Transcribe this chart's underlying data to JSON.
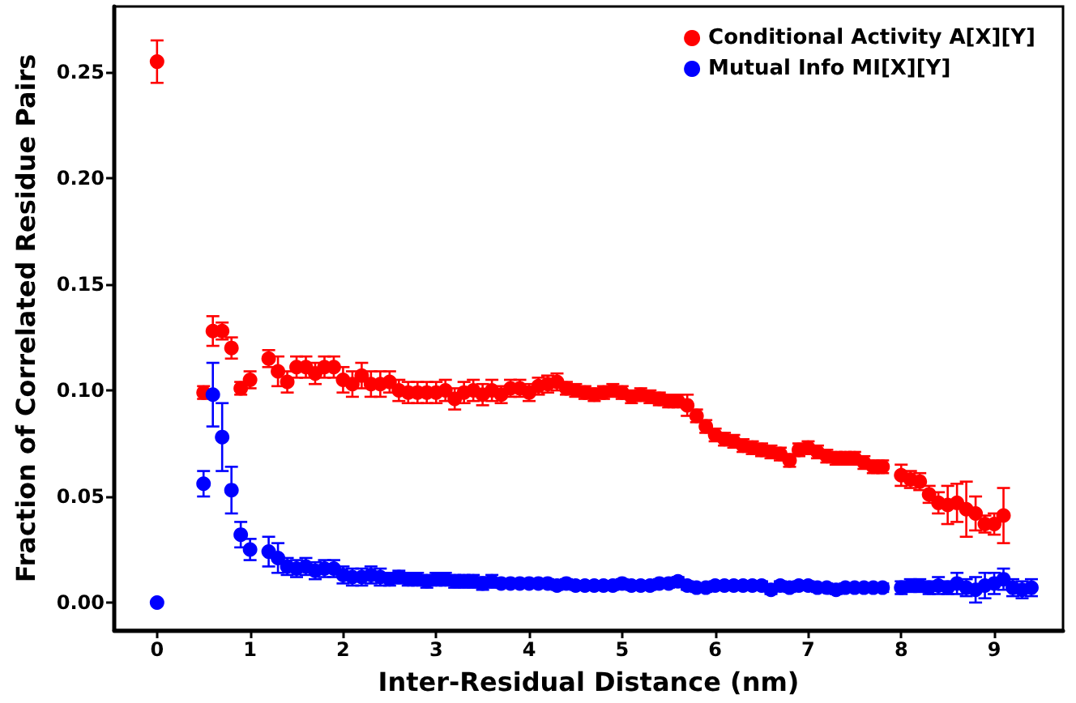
{
  "chart_data": {
    "type": "scatter",
    "xlabel": "Inter-Residual Distance (nm)",
    "ylabel": "Fraction of Correlated Residue Pairs",
    "xlim": [
      -0.46,
      9.74
    ],
    "xticks": [
      0,
      1,
      2,
      3,
      4,
      5,
      6,
      7,
      8,
      9
    ],
    "ylim": [
      -0.013,
      0.281
    ],
    "yticks": [
      {
        "value": 0,
        "label": "0.00"
      },
      0.05,
      {
        "value": 0.1,
        "label": "0.10"
      },
      0.15,
      {
        "value": 0.2,
        "label": "0.20"
      },
      0.25
    ],
    "legend": "top right",
    "marker": "circle",
    "grid": false,
    "series": [
      {
        "name": "Conditional Activity A[X][Y]",
        "color": "#ff0000",
        "x": [
          0,
          0.5,
          0.6,
          0.7,
          0.8,
          0.9,
          1.0,
          1.2,
          1.3,
          1.4,
          1.5,
          1.6,
          1.7,
          1.8,
          1.9,
          2.0,
          2.1,
          2.2,
          2.3,
          2.4,
          2.5,
          2.6,
          2.7,
          2.8,
          2.9,
          3.0,
          3.1,
          3.2,
          3.3,
          3.4,
          3.5,
          3.6,
          3.7,
          3.8,
          3.9,
          4.0,
          4.1,
          4.2,
          4.3,
          4.4,
          4.5,
          4.6,
          4.7,
          4.8,
          4.9,
          5.0,
          5.1,
          5.2,
          5.3,
          5.4,
          5.5,
          5.6,
          5.7,
          5.8,
          5.9,
          6.0,
          6.1,
          6.2,
          6.3,
          6.4,
          6.5,
          6.6,
          6.7,
          6.8,
          6.9,
          7.0,
          7.1,
          7.2,
          7.3,
          7.4,
          7.5,
          7.6,
          7.7,
          7.8,
          8.0,
          8.1,
          8.2,
          8.3,
          8.4,
          8.5,
          8.6,
          8.7,
          8.8,
          8.9,
          9.0,
          9.1
        ],
        "values": [
          0.255,
          0.099,
          0.128,
          0.128,
          0.12,
          0.101,
          0.105,
          0.115,
          0.109,
          0.104,
          0.111,
          0.111,
          0.108,
          0.111,
          0.111,
          0.105,
          0.103,
          0.107,
          0.103,
          0.103,
          0.104,
          0.1,
          0.099,
          0.099,
          0.099,
          0.099,
          0.1,
          0.096,
          0.099,
          0.1,
          0.098,
          0.1,
          0.098,
          0.101,
          0.101,
          0.099,
          0.102,
          0.103,
          0.104,
          0.101,
          0.1,
          0.099,
          0.098,
          0.099,
          0.1,
          0.099,
          0.097,
          0.098,
          0.097,
          0.096,
          0.095,
          0.095,
          0.093,
          0.088,
          0.083,
          0.079,
          0.077,
          0.076,
          0.074,
          0.073,
          0.072,
          0.071,
          0.07,
          0.067,
          0.072,
          0.073,
          0.071,
          0.069,
          0.068,
          0.068,
          0.068,
          0.066,
          0.064,
          0.064,
          0.06,
          0.058,
          0.057,
          0.051,
          0.047,
          0.046,
          0.047,
          0.044,
          0.042,
          0.037,
          0.037,
          0.041
        ],
        "errors": [
          0.01,
          0.003,
          0.007,
          0.004,
          0.005,
          0.003,
          0.004,
          0.004,
          0.007,
          0.005,
          0.005,
          0.005,
          0.005,
          0.005,
          0.005,
          0.006,
          0.006,
          0.006,
          0.006,
          0.006,
          0.005,
          0.005,
          0.005,
          0.005,
          0.005,
          0.005,
          0.005,
          0.005,
          0.005,
          0.005,
          0.005,
          0.005,
          0.004,
          0.004,
          0.004,
          0.004,
          0.004,
          0.004,
          0.004,
          0.003,
          0.003,
          0.003,
          0.003,
          0.003,
          0.003,
          0.003,
          0.003,
          0.003,
          0.003,
          0.003,
          0.003,
          0.003,
          0.005,
          0.003,
          0.003,
          0.003,
          0.003,
          0.003,
          0.003,
          0.003,
          0.003,
          0.003,
          0.003,
          0.003,
          0.003,
          0.003,
          0.003,
          0.003,
          0.003,
          0.003,
          0.003,
          0.003,
          0.003,
          0.003,
          0.005,
          0.004,
          0.004,
          0.004,
          0.005,
          0.009,
          0.009,
          0.013,
          0.008,
          0.004,
          0.005,
          0.013
        ]
      },
      {
        "name": "Mutual Info MI[X][Y]",
        "color": "#0000ff",
        "x": [
          0,
          0.5,
          0.6,
          0.7,
          0.8,
          0.9,
          1.0,
          1.2,
          1.3,
          1.4,
          1.5,
          1.6,
          1.7,
          1.8,
          1.9,
          2.0,
          2.1,
          2.2,
          2.3,
          2.4,
          2.5,
          2.6,
          2.7,
          2.8,
          2.9,
          3.0,
          3.1,
          3.2,
          3.3,
          3.4,
          3.5,
          3.6,
          3.7,
          3.8,
          3.9,
          4.0,
          4.1,
          4.2,
          4.3,
          4.4,
          4.5,
          4.6,
          4.7,
          4.8,
          4.9,
          5.0,
          5.1,
          5.2,
          5.3,
          5.4,
          5.5,
          5.6,
          5.7,
          5.8,
          5.9,
          6.0,
          6.1,
          6.2,
          6.3,
          6.4,
          6.5,
          6.6,
          6.7,
          6.8,
          6.9,
          7.0,
          7.1,
          7.2,
          7.3,
          7.4,
          7.5,
          7.6,
          7.7,
          7.8,
          8.0,
          8.1,
          8.2,
          8.3,
          8.4,
          8.5,
          8.6,
          8.7,
          8.8,
          8.9,
          9.0,
          9.1,
          9.2,
          9.3,
          9.4
        ],
        "values": [
          0,
          0.056,
          0.098,
          0.078,
          0.053,
          0.032,
          0.025,
          0.024,
          0.021,
          0.017,
          0.016,
          0.017,
          0.015,
          0.016,
          0.016,
          0.013,
          0.012,
          0.012,
          0.013,
          0.012,
          0.011,
          0.012,
          0.011,
          0.011,
          0.01,
          0.011,
          0.011,
          0.01,
          0.01,
          0.01,
          0.009,
          0.01,
          0.009,
          0.009,
          0.009,
          0.009,
          0.009,
          0.009,
          0.008,
          0.009,
          0.008,
          0.008,
          0.008,
          0.008,
          0.008,
          0.009,
          0.008,
          0.008,
          0.008,
          0.009,
          0.009,
          0.01,
          0.008,
          0.007,
          0.007,
          0.008,
          0.008,
          0.008,
          0.008,
          0.008,
          0.008,
          0.006,
          0.008,
          0.007,
          0.008,
          0.008,
          0.007,
          0.007,
          0.006,
          0.007,
          0.007,
          0.007,
          0.007,
          0.007,
          0.007,
          0.008,
          0.008,
          0.007,
          0.008,
          0.007,
          0.009,
          0.007,
          0.006,
          0.008,
          0.009,
          0.011,
          0.007,
          0.006,
          0.007
        ],
        "errors": [
          null,
          0.006,
          0.015,
          0.016,
          0.011,
          0.006,
          0.005,
          0.007,
          0.007,
          0.004,
          0.004,
          0.004,
          0.004,
          0.004,
          0.004,
          0.004,
          0.004,
          0.004,
          0.004,
          0.004,
          0.003,
          0.003,
          0.003,
          0.003,
          0.003,
          0.003,
          0.003,
          0.003,
          0.003,
          0.003,
          0.003,
          0.003,
          0.002,
          0.002,
          0.002,
          0.002,
          0.002,
          0.002,
          0.002,
          0.002,
          0.002,
          0.002,
          0.002,
          0.002,
          0.002,
          0.002,
          0.002,
          0.002,
          0.002,
          0.002,
          0.002,
          0.002,
          0.002,
          0.002,
          0.002,
          0.002,
          0.002,
          0.002,
          0.002,
          0.002,
          0.002,
          0.002,
          0.002,
          0.002,
          0.002,
          0.002,
          0.002,
          0.002,
          0.002,
          0.002,
          0.002,
          0.002,
          0.002,
          0.002,
          0.003,
          0.003,
          0.003,
          0.003,
          0.004,
          0.003,
          0.005,
          0.004,
          0.006,
          0.006,
          0.005,
          0.005,
          0.004,
          0.004,
          0.004
        ]
      }
    ]
  }
}
